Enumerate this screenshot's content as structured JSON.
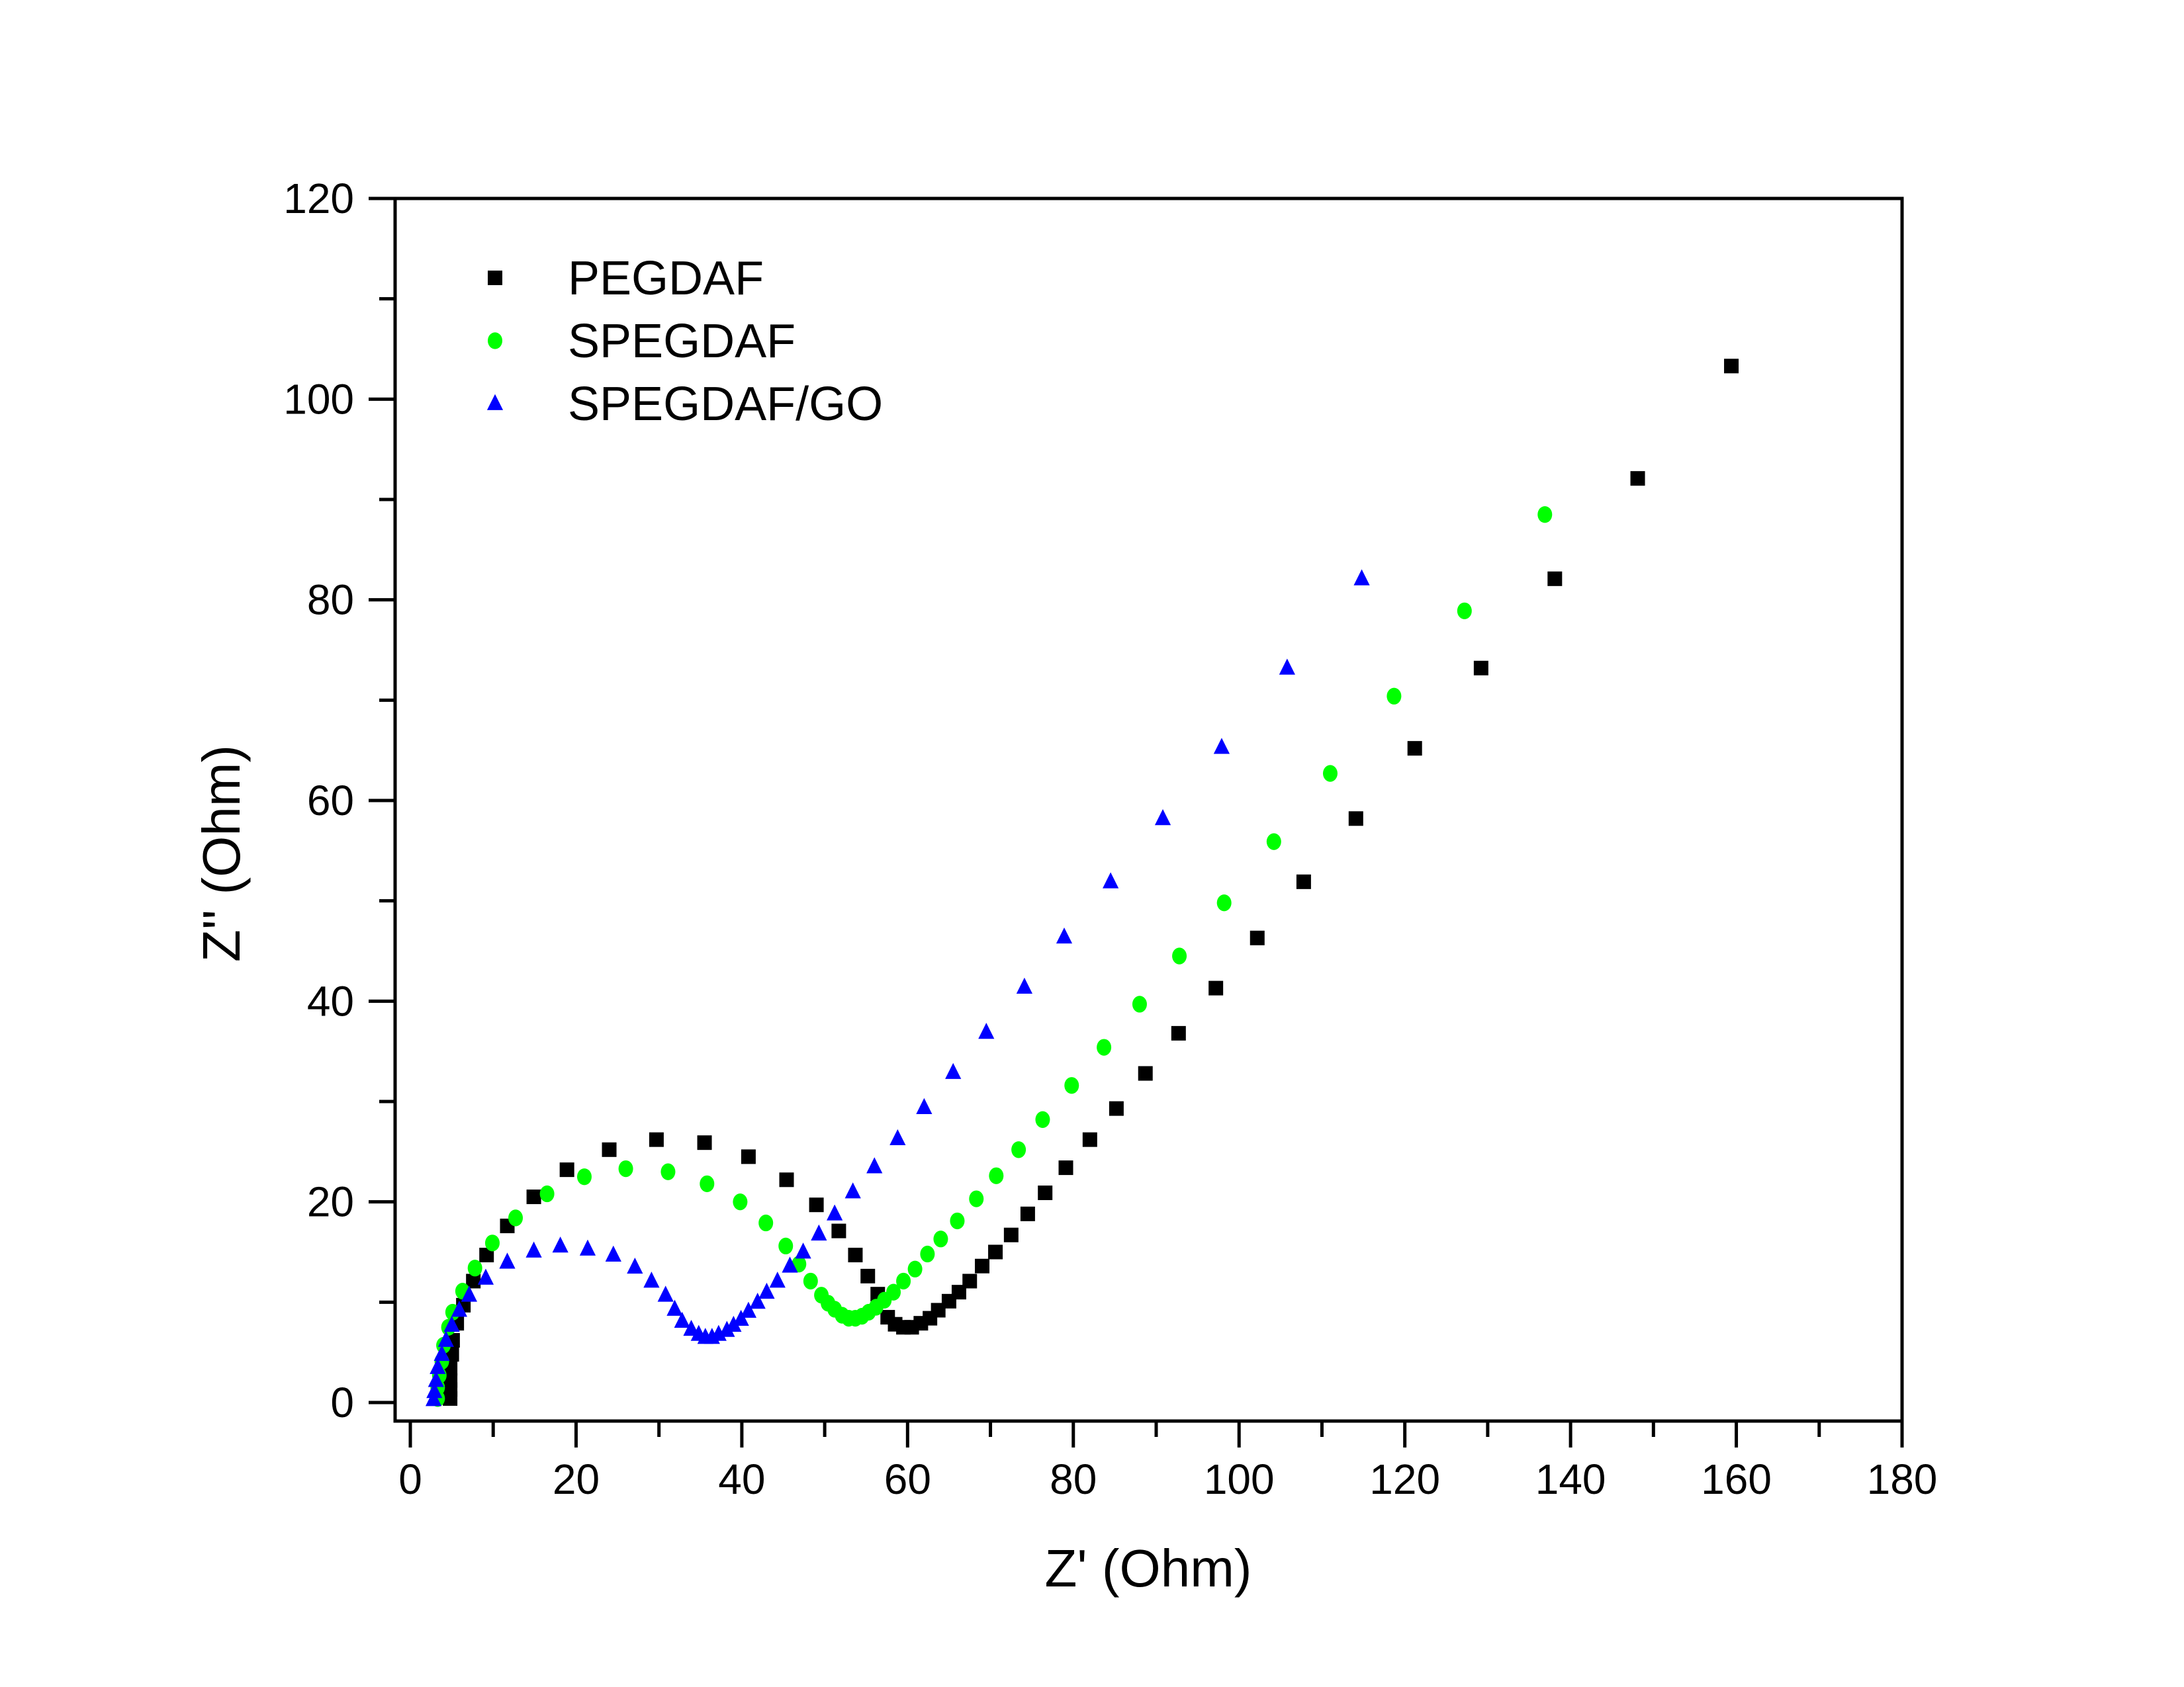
{
  "chart_data": {
    "type": "scatter",
    "title": "",
    "xlabel": "Z' (Ohm)",
    "ylabel": "Z'' (Ohm)",
    "xlim": [
      0,
      180
    ],
    "ylim": [
      0,
      120
    ],
    "xticks": [
      0,
      20,
      40,
      60,
      80,
      100,
      120,
      140,
      160,
      180
    ],
    "yticks": [
      0,
      20,
      40,
      60,
      80,
      100,
      120
    ],
    "grid": false,
    "legend_position": "top-left",
    "series": [
      {
        "name": "PEGDAF",
        "marker": "square",
        "color": "#000000",
        "points": [
          [
            4.8,
            0.4
          ],
          [
            4.8,
            1.3
          ],
          [
            4.8,
            2.2
          ],
          [
            4.8,
            3.4
          ],
          [
            5.0,
            4.8
          ],
          [
            5.1,
            6.2
          ],
          [
            5.6,
            7.9
          ],
          [
            6.4,
            9.7
          ],
          [
            7.6,
            12.1
          ],
          [
            9.2,
            14.7
          ],
          [
            11.7,
            17.6
          ],
          [
            14.9,
            20.5
          ],
          [
            18.9,
            23.2
          ],
          [
            24.0,
            25.2
          ],
          [
            29.7,
            26.2
          ],
          [
            35.5,
            25.9
          ],
          [
            40.8,
            24.5
          ],
          [
            45.4,
            22.2
          ],
          [
            49.0,
            19.7
          ],
          [
            51.7,
            17.1
          ],
          [
            53.7,
            14.7
          ],
          [
            55.2,
            12.6
          ],
          [
            56.4,
            10.8
          ],
          [
            57.6,
            8.5
          ],
          [
            58.5,
            7.8
          ],
          [
            59.5,
            7.5
          ],
          [
            60.5,
            7.5
          ],
          [
            61.6,
            7.9
          ],
          [
            62.7,
            8.4
          ],
          [
            63.7,
            9.2
          ],
          [
            65.0,
            10.1
          ],
          [
            66.2,
            11.0
          ],
          [
            67.5,
            12.1
          ],
          [
            69.0,
            13.6
          ],
          [
            70.6,
            15.0
          ],
          [
            72.5,
            16.7
          ],
          [
            74.5,
            18.8
          ],
          [
            76.6,
            20.9
          ],
          [
            79.1,
            23.4
          ],
          [
            82.0,
            26.2
          ],
          [
            85.2,
            29.3
          ],
          [
            88.7,
            32.8
          ],
          [
            92.7,
            36.8
          ],
          [
            97.2,
            41.3
          ],
          [
            102.2,
            46.3
          ],
          [
            107.8,
            51.9
          ],
          [
            114.1,
            58.2
          ],
          [
            121.2,
            65.2
          ],
          [
            129.2,
            73.2
          ],
          [
            138.1,
            82.1
          ],
          [
            148.1,
            92.1
          ],
          [
            159.4,
            103.3
          ]
        ]
      },
      {
        "name": "SPEGDAF",
        "marker": "circle",
        "color": "#00ff00",
        "points": [
          [
            3.3,
            0.4
          ],
          [
            3.3,
            1.5
          ],
          [
            3.5,
            2.7
          ],
          [
            3.8,
            4.1
          ],
          [
            4.0,
            5.7
          ],
          [
            4.6,
            7.5
          ],
          [
            5.1,
            9.0
          ],
          [
            6.3,
            11.1
          ],
          [
            7.8,
            13.4
          ],
          [
            9.9,
            15.9
          ],
          [
            12.7,
            18.4
          ],
          [
            16.5,
            20.8
          ],
          [
            21.0,
            22.5
          ],
          [
            26.0,
            23.3
          ],
          [
            31.1,
            23.0
          ],
          [
            35.8,
            21.8
          ],
          [
            39.8,
            20.0
          ],
          [
            42.9,
            17.9
          ],
          [
            45.3,
            15.6
          ],
          [
            46.9,
            13.8
          ],
          [
            48.3,
            12.1
          ],
          [
            49.6,
            10.7
          ],
          [
            50.4,
            9.9
          ],
          [
            51.2,
            9.3
          ],
          [
            52.1,
            8.7
          ],
          [
            52.9,
            8.4
          ],
          [
            53.7,
            8.4
          ],
          [
            54.5,
            8.6
          ],
          [
            55.3,
            9.0
          ],
          [
            56.2,
            9.5
          ],
          [
            57.2,
            10.2
          ],
          [
            58.3,
            11.0
          ],
          [
            59.5,
            12.1
          ],
          [
            60.9,
            13.3
          ],
          [
            62.4,
            14.8
          ],
          [
            64.0,
            16.3
          ],
          [
            66.0,
            18.1
          ],
          [
            68.3,
            20.3
          ],
          [
            70.7,
            22.6
          ],
          [
            73.4,
            25.2
          ],
          [
            76.3,
            28.2
          ],
          [
            79.8,
            31.6
          ],
          [
            83.7,
            35.4
          ],
          [
            88.0,
            39.7
          ],
          [
            92.8,
            44.5
          ],
          [
            98.2,
            49.8
          ],
          [
            104.2,
            55.9
          ],
          [
            111.0,
            62.7
          ],
          [
            118.7,
            70.4
          ],
          [
            127.2,
            78.9
          ],
          [
            136.9,
            88.5
          ]
        ]
      },
      {
        "name": "SPEGDAF/GO",
        "marker": "triangle",
        "color": "#0000ff",
        "points": [
          [
            2.8,
            0.3
          ],
          [
            2.9,
            1.1
          ],
          [
            3.1,
            2.2
          ],
          [
            3.3,
            3.5
          ],
          [
            3.8,
            4.8
          ],
          [
            4.3,
            6.2
          ],
          [
            5.0,
            7.7
          ],
          [
            5.9,
            9.2
          ],
          [
            7.1,
            10.7
          ],
          [
            9.1,
            12.4
          ],
          [
            11.7,
            14.0
          ],
          [
            14.9,
            15.1
          ],
          [
            18.1,
            15.6
          ],
          [
            21.4,
            15.3
          ],
          [
            24.5,
            14.7
          ],
          [
            27.1,
            13.5
          ],
          [
            29.1,
            12.1
          ],
          [
            30.8,
            10.7
          ],
          [
            31.9,
            9.3
          ],
          [
            32.8,
            8.1
          ],
          [
            33.9,
            7.3
          ],
          [
            34.8,
            6.8
          ],
          [
            35.6,
            6.5
          ],
          [
            36.4,
            6.5
          ],
          [
            37.2,
            6.8
          ],
          [
            38.2,
            7.2
          ],
          [
            39.0,
            7.7
          ],
          [
            39.9,
            8.3
          ],
          [
            40.8,
            9.1
          ],
          [
            41.9,
            10.0
          ],
          [
            43.0,
            11.0
          ],
          [
            44.3,
            12.1
          ],
          [
            45.8,
            13.6
          ],
          [
            47.4,
            15.0
          ],
          [
            49.3,
            16.8
          ],
          [
            51.2,
            18.8
          ],
          [
            53.4,
            21.0
          ],
          [
            56.0,
            23.5
          ],
          [
            58.8,
            26.3
          ],
          [
            62.0,
            29.4
          ],
          [
            65.5,
            32.9
          ],
          [
            69.5,
            36.9
          ],
          [
            74.1,
            41.4
          ],
          [
            78.9,
            46.4
          ],
          [
            84.5,
            51.9
          ],
          [
            90.8,
            58.2
          ],
          [
            97.9,
            65.3
          ],
          [
            105.8,
            73.2
          ],
          [
            114.8,
            82.1
          ]
        ]
      }
    ]
  }
}
